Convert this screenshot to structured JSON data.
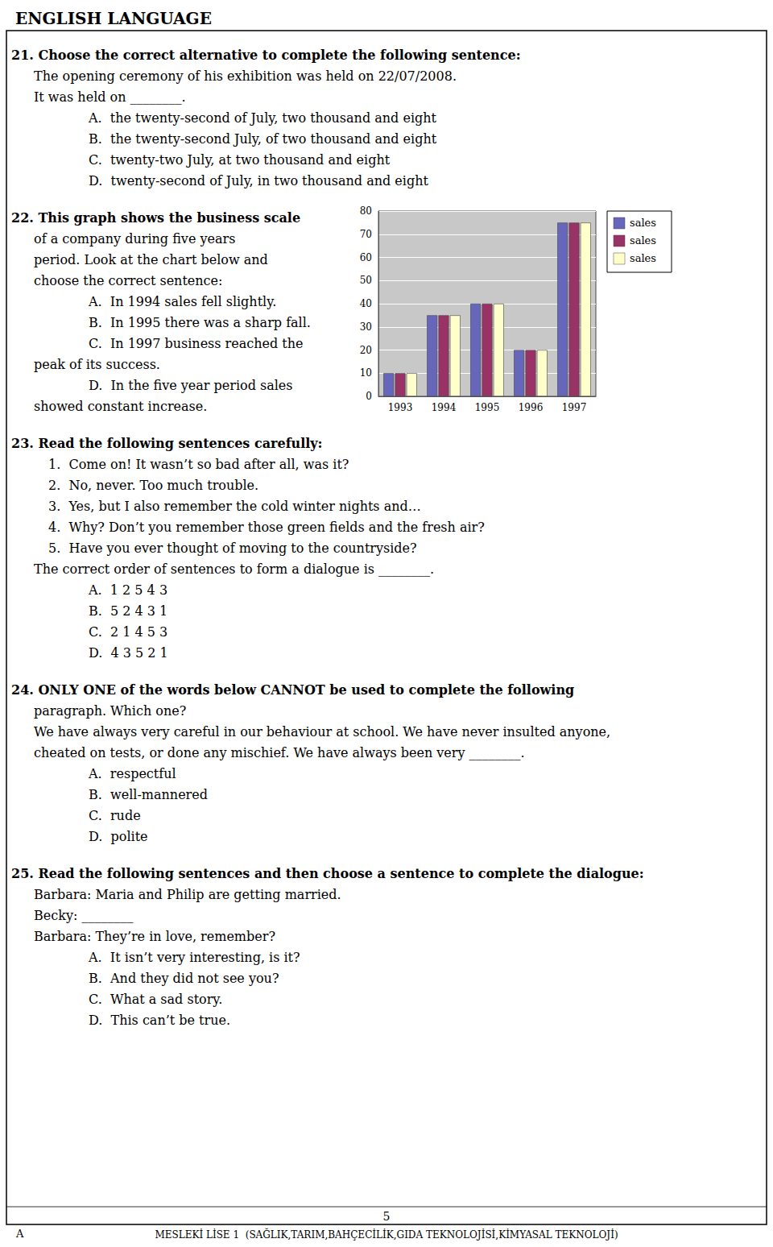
{
  "chart_data": {
    "type": "bar",
    "title": "ENGLISH LANGUAGE",
    "categories": [
      "1993",
      "1994",
      "1995",
      "1996",
      "1997"
    ],
    "series": [
      {
        "name": "sales",
        "color": "#6666BB",
        "values": [
          10,
          35,
          40,
          20,
          75
        ]
      },
      {
        "name": "sales",
        "color": "#993366",
        "values": [
          10,
          35,
          40,
          20,
          75
        ]
      },
      {
        "name": "sales",
        "color": "#FFFFCC",
        "values": [
          10,
          35,
          40,
          20,
          75
        ]
      }
    ],
    "ylim": [
      0,
      80
    ],
    "yticks": [
      0,
      10,
      20,
      30,
      40,
      50,
      60,
      70,
      80
    ],
    "grid": true,
    "legend": "right",
    "annotations": [
      "21. Choose the correct alternative to complete the following sentence:",
      "The opening ceremony of his exhibition was held on 22/07/2008.",
      "It was held on ________.",
      "A.  the twenty-second of July, two thousand and eight",
      "B.  the twenty-second July, of two thousand and eight",
      "C.  twenty-two July, at two thousand and eight",
      "D.  twenty-second of July, in two thousand and eight",
      "22. This graph shows the business scale",
      "of a company during five years",
      "period. Look at the chart below and",
      "choose the correct sentence:",
      "A.  In 1994 sales fell slightly.",
      "B.  In 1995 there was a sharp fall.",
      "C.  In 1997 business reached the",
      "peak of its success.",
      "D.  In the five year period sales",
      "showed constant increase.",
      "23. Read the following sentences carefully:",
      "1.  Come on! It wasn’t so bad after all, was it?",
      "2.  No, never. Too much trouble.",
      "3.  Yes, but I also remember the cold winter nights and…",
      "4.  Why? Don’t you remember those green fields and the fresh air?",
      "5.  Have you ever thought of moving to the countryside?",
      "The correct order of sentences to form a dialogue is ________.",
      "A.  1 2 5 4 3",
      "B.  5 2 4 3 1",
      "C.  2 1 4 5 3",
      "D.  4 3 5 2 1",
      "24. ONLY ONE of the words below CANNOT be used to complete the following",
      "paragraph. Which one?",
      "We have always very careful in our behaviour at school. We have never insulted anyone,",
      "cheated on tests, or done any mischief. We have always been very ________.",
      "A.  respectful",
      "B.  well-mannered",
      "C.  rude",
      "D.  polite",
      "25. Read the following sentences and then choose a sentence to complete the dialogue:",
      "Barbara: Maria and Philip are getting married.",
      "Becky: ________",
      "Barbara: They’re in love, remember?",
      "A.  It isn’t very interesting, is it?",
      "B.  And they did not see you?",
      "C.  What a sad story.",
      "D.  This can’t be true.",
      "5",
      "A",
      "MESLEKİ LİSE 1  (SAĞLIK,TARIM,BAHÇECİLİK,GIDA TEKNOLOJİSİ,KİMYASAL TEKNOLOJİ)"
    ]
  }
}
